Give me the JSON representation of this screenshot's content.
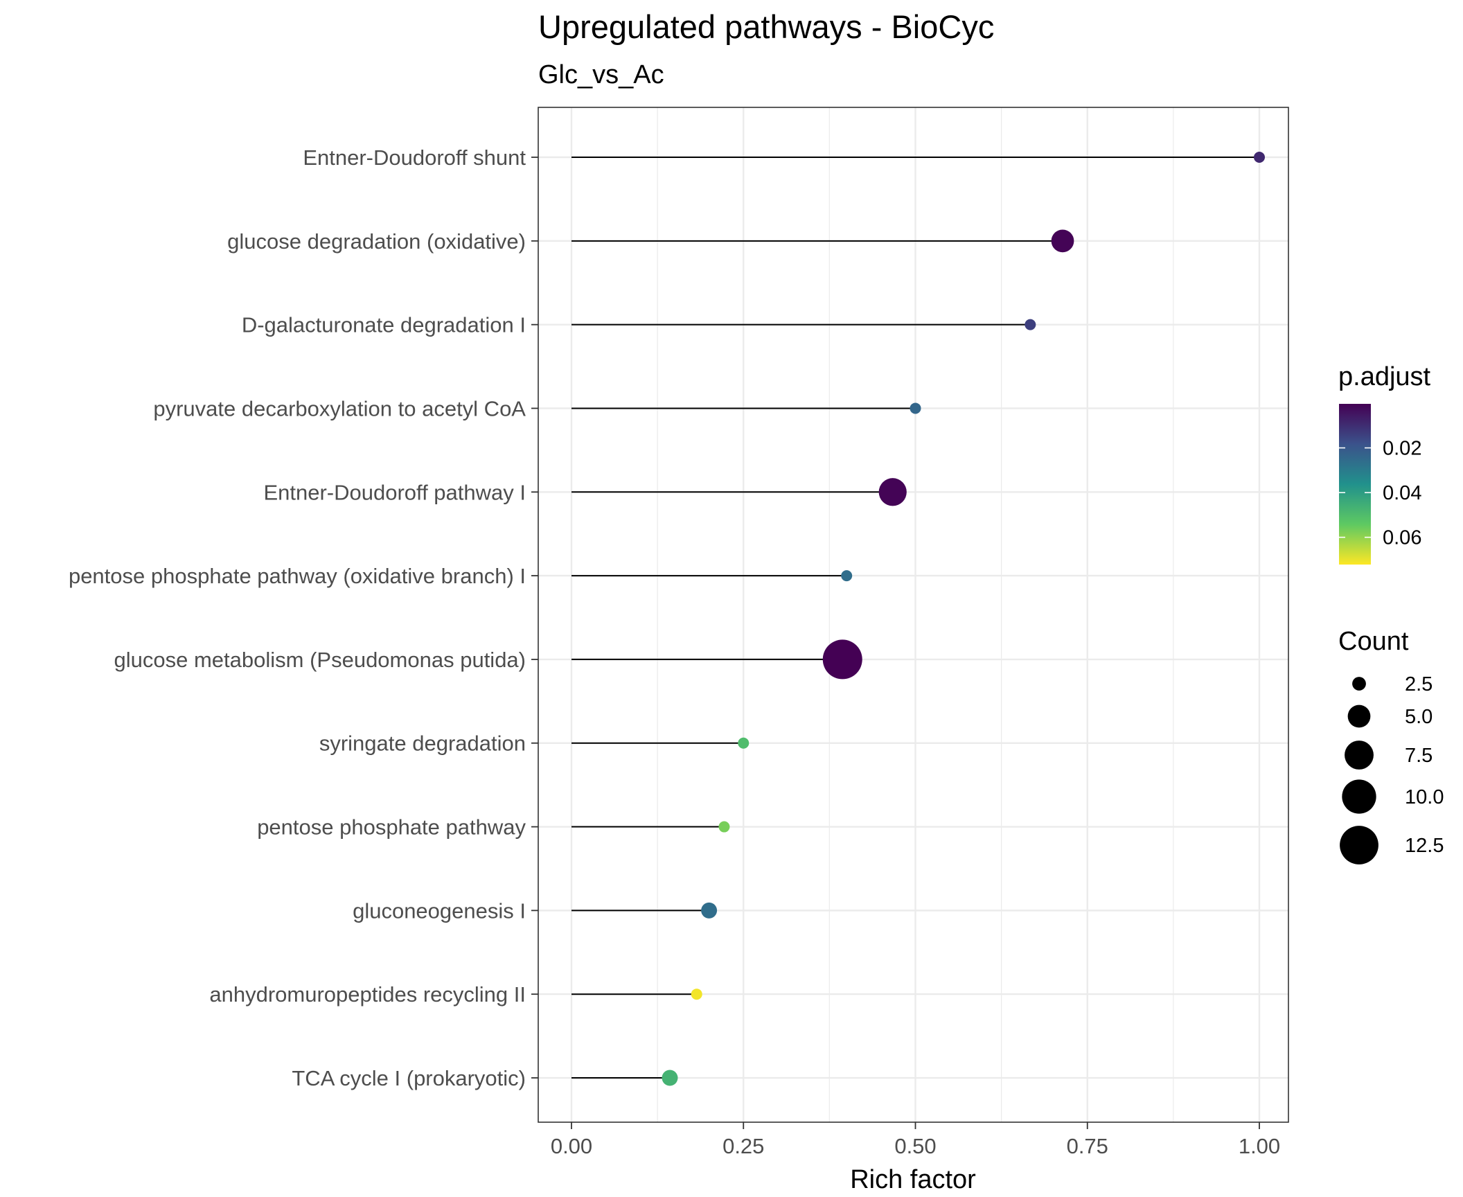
{
  "chart_data": {
    "type": "scatter",
    "style": "lollipop",
    "title": "Upregulated pathways - BioCyc",
    "subtitle": "Glc_vs_Ac",
    "xlabel": "Rich factor",
    "ylabel": "",
    "xlim": [
      -0.05,
      1.05
    ],
    "xticks": [
      0,
      0.25,
      0.5,
      0.75,
      1.0
    ],
    "xtick_labels": [
      "0.00",
      "0.25",
      "0.50",
      "0.75",
      "1.00"
    ],
    "grid": true,
    "points": [
      {
        "pathway": "Entner-Doudoroff shunt",
        "rich_factor": 1.0,
        "count": 2,
        "p_adjust": 0.009
      },
      {
        "pathway": "glucose degradation (oxidative)",
        "rich_factor": 0.714,
        "count": 5,
        "p_adjust": 0.001
      },
      {
        "pathway": "D-galacturonate degradation I",
        "rich_factor": 0.667,
        "count": 2,
        "p_adjust": 0.014
      },
      {
        "pathway": "pyruvate decarboxylation to acetyl CoA",
        "rich_factor": 0.5,
        "count": 2,
        "p_adjust": 0.024
      },
      {
        "pathway": "Entner-Doudoroff pathway I",
        "rich_factor": 0.467,
        "count": 7,
        "p_adjust": 0.001
      },
      {
        "pathway": "pentose phosphate pathway (oxidative branch) I",
        "rich_factor": 0.4,
        "count": 2,
        "p_adjust": 0.026
      },
      {
        "pathway": "glucose metabolism (Pseudomonas putida)",
        "rich_factor": 0.394,
        "count": 13,
        "p_adjust": 0.0003
      },
      {
        "pathway": "syringate degradation",
        "rich_factor": 0.25,
        "count": 2,
        "p_adjust": 0.05
      },
      {
        "pathway": "pentose phosphate pathway",
        "rich_factor": 0.222,
        "count": 2,
        "p_adjust": 0.057
      },
      {
        "pathway": "gluconeogenesis I",
        "rich_factor": 0.2,
        "count": 3,
        "p_adjust": 0.026
      },
      {
        "pathway": "anhydromuropeptides recycling II",
        "rich_factor": 0.182,
        "count": 2,
        "p_adjust": 0.071
      },
      {
        "pathway": "TCA cycle I (prokaryotic)",
        "rich_factor": 0.143,
        "count": 3,
        "p_adjust": 0.047
      }
    ],
    "color_legend": {
      "title": "p.adjust",
      "range": [
        0.0003,
        0.0722
      ],
      "ticks": [
        0.02,
        0.04,
        0.06
      ],
      "tick_labels": [
        "0.02",
        "0.04",
        "0.06"
      ],
      "palette": [
        "#440154",
        "#3b528b",
        "#21918c",
        "#5ec962",
        "#fde725"
      ]
    },
    "size_legend": {
      "title": "Count",
      "range": [
        2,
        13
      ],
      "values": [
        2.5,
        5.0,
        7.5,
        10.0,
        12.5
      ],
      "labels": [
        "2.5",
        "5.0",
        "7.5",
        "10.0",
        "12.5"
      ]
    }
  }
}
